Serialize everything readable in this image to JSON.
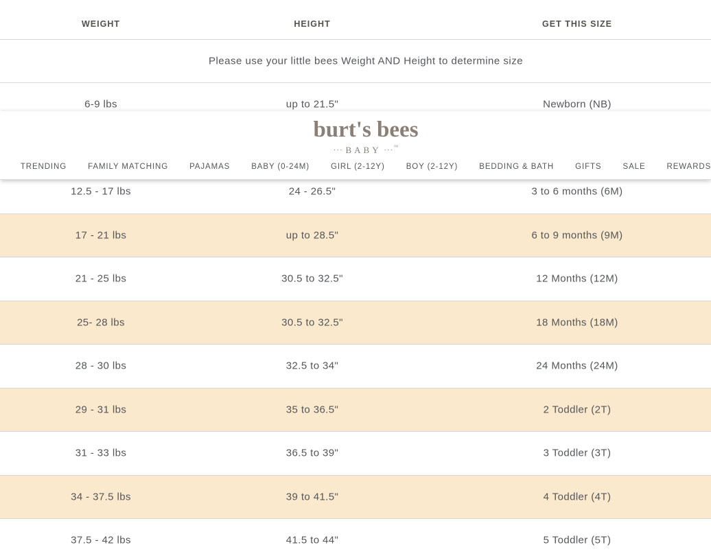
{
  "header": {
    "logo": {
      "brand": "burt's bees",
      "dots_left": "··· ",
      "sub": "BABY",
      "dots_right": " ···",
      "tm": "™"
    },
    "nav": [
      {
        "label": "TRENDING"
      },
      {
        "label": "FAMILY MATCHING"
      },
      {
        "label": "PAJAMAS"
      },
      {
        "label": "BABY (0-24M)"
      },
      {
        "label": "GIRL (2-12Y)"
      },
      {
        "label": "BOY (2-12Y)"
      },
      {
        "label": "BEDDING & BATH"
      },
      {
        "label": "GIFTS"
      },
      {
        "label": "SALE"
      },
      {
        "label": "REWARDS"
      }
    ]
  },
  "table": {
    "columns": [
      "WEIGHT",
      "HEIGHT",
      "GET THIS SIZE"
    ],
    "note": "Please use your little bees Weight AND Height to determine size",
    "rows": [
      {
        "weight": "6-9 lbs",
        "height": "up to 21.5\"",
        "size": "Newborn (NB)",
        "highlight": false
      },
      {
        "weight": "",
        "height": "",
        "size": "",
        "highlight": false
      },
      {
        "weight": "12.5 - 17 lbs",
        "height": "24 - 26.5\"",
        "size": "3 to 6 months (6M)",
        "highlight": false
      },
      {
        "weight": "17 - 21 lbs",
        "height": "up to 28.5\"",
        "size": "6 to 9 months (9M)",
        "highlight": true
      },
      {
        "weight": "21 - 25 lbs",
        "height": "30.5 to 32.5\"",
        "size": "12 Months (12M)",
        "highlight": false
      },
      {
        "weight": "25- 28 lbs",
        "height": "30.5 to 32.5\"",
        "size": "18 Months (18M)",
        "highlight": true
      },
      {
        "weight": "28 - 30 lbs",
        "height": "32.5 to 34\"",
        "size": "24 Months (24M)",
        "highlight": false
      },
      {
        "weight": "29 - 31 lbs",
        "height": "35 to 36.5\"",
        "size": "2 Toddler (2T)",
        "highlight": true
      },
      {
        "weight": "31 - 33 lbs",
        "height": "36.5 to 39\"",
        "size": "3 Toddler (3T)",
        "highlight": false
      },
      {
        "weight": "34 - 37.5 lbs",
        "height": "39 to 41.5\"",
        "size": "4 Toddler (4T)",
        "highlight": true
      },
      {
        "weight": "37.5 - 42 lbs",
        "height": "41.5 to 44\"",
        "size": "5 Toddler (5T)",
        "highlight": false
      }
    ],
    "colors": {
      "highlight_row": "#FAE9CD",
      "row_border": "#D6D6D6",
      "body_text": "#55565A",
      "header_text": "#55514B",
      "logo_color": "#8B8077"
    }
  }
}
